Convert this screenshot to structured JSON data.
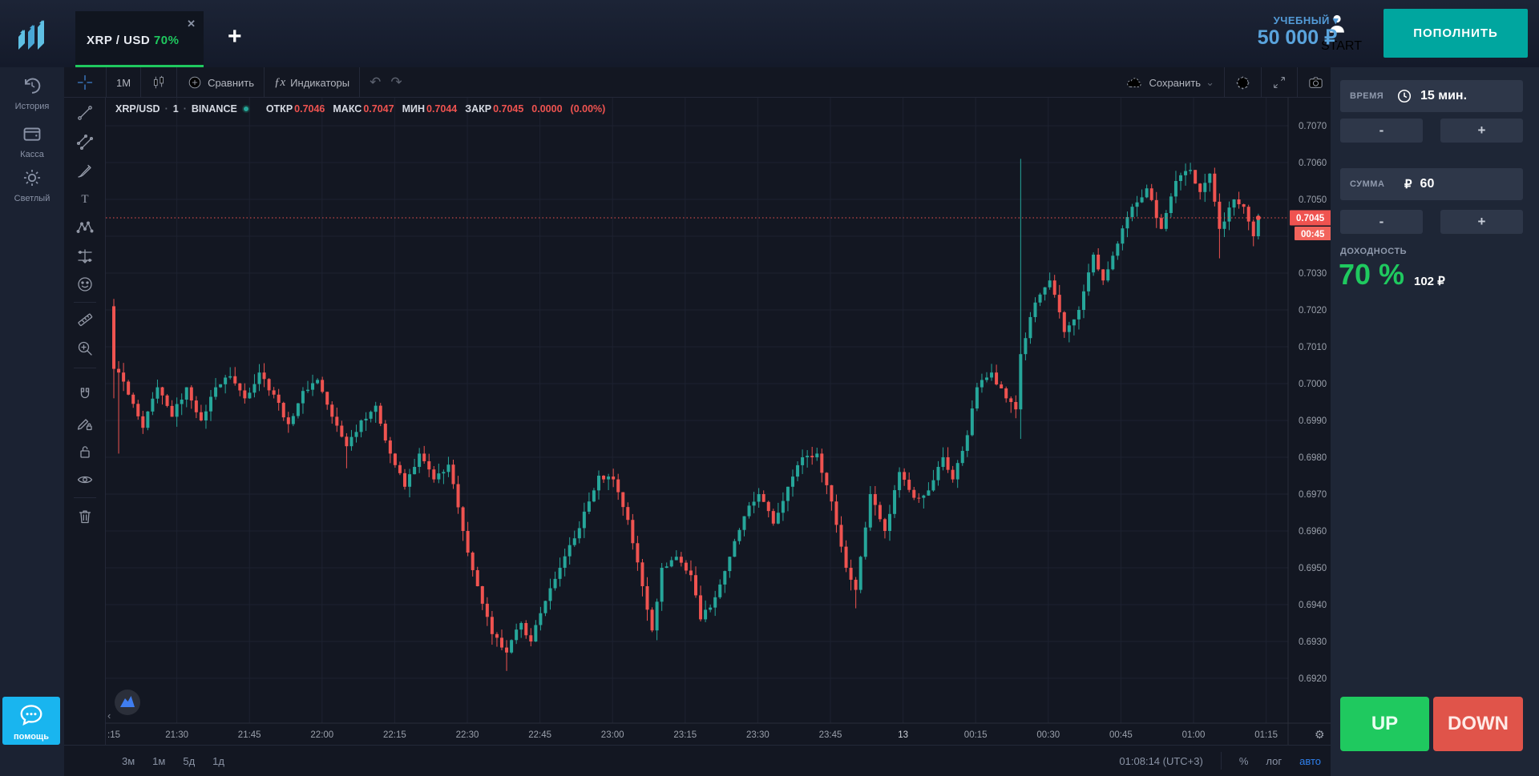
{
  "topbar": {
    "tab": {
      "symbol": "XRP / USD",
      "payout": "70%",
      "close": "✕"
    },
    "new_tab": "+",
    "account_label": "START",
    "account_type": "УЧЕБНЫЙ",
    "caret": "▾",
    "balance": "50 000 ₽",
    "deposit": "ПОПОЛНИТЬ"
  },
  "sidebar": {
    "items": [
      {
        "label": "История"
      },
      {
        "label": "Касса"
      },
      {
        "label": "Светлый"
      }
    ],
    "help": "помощь"
  },
  "toolbar": {
    "interval": "1М",
    "compare": "Сравнить",
    "fx": "ƒx",
    "indicators": "Индикаторы",
    "undo": "↶",
    "redo": "↷",
    "save": "Сохранить",
    "save_caret": "⌄"
  },
  "legend": {
    "symbol": "XRP/USD",
    "sep1": "·",
    "interval": "1",
    "sep2": "·",
    "exchange": "BINANCE",
    "open_label": "ОТКР",
    "open": "0.7046",
    "high_label": "МАКС",
    "high": "0.7047",
    "low_label": "МИН",
    "low": "0.7044",
    "close_label": "ЗАКР",
    "close": "0.7045",
    "change": "0.0000",
    "change_pct": "(0.00%)"
  },
  "price_marker": {
    "price": "0.7045",
    "countdown": "00:45"
  },
  "bottom_bar": {
    "ranges": [
      "3м",
      "1м",
      "5д",
      "1д"
    ],
    "clock": "01:08:14 (UTC+3)",
    "percent": "%",
    "log": "лог",
    "auto": "авто"
  },
  "panel": {
    "time_label": "ВРЕМЯ",
    "time_value": "15 мин.",
    "amount_label": "СУММА",
    "currency": "₽",
    "amount_value": "60",
    "minus": "-",
    "plus": "+",
    "payout_label": "ДОХОДНОСТЬ",
    "payout_percent": "70 %",
    "payout_profit": "102 ₽",
    "up": "UP",
    "down": "DOWN"
  },
  "chart_data": {
    "type": "candlestick",
    "symbol": "XRP/USD",
    "exchange": "BINANCE",
    "interval_minutes": 1,
    "start_time": "21:13",
    "end_time": "01:09",
    "x_ticks": [
      ":15",
      "21:30",
      "21:45",
      "22:00",
      "22:15",
      "22:30",
      "22:45",
      "23:00",
      "23:15",
      "23:30",
      "23:45",
      "13",
      "00:15",
      "00:30",
      "00:45",
      "01:00",
      "01:15"
    ],
    "y_ticks": [
      0.707,
      0.706,
      0.705,
      0.704,
      0.703,
      0.702,
      0.701,
      0.7,
      0.699,
      0.698,
      0.697,
      0.696,
      0.695,
      0.694,
      0.693,
      0.692
    ],
    "ylim": [
      0.69055,
      0.70835
    ],
    "current_price": 0.7045,
    "countdown": "00:45",
    "grid": true,
    "legend_position": "top-left",
    "colors": {
      "up": "#26a69a",
      "down": "#ef5350",
      "current_line": "#ef5350"
    },
    "minutes": 237,
    "anchors": [
      [
        0,
        0.7004
      ],
      [
        1,
        0.7003
      ],
      [
        3,
        0.6997
      ],
      [
        6,
        0.6988
      ],
      [
        9,
        0.6999
      ],
      [
        12,
        0.6991
      ],
      [
        15,
        0.6999
      ],
      [
        18,
        0.699
      ],
      [
        21,
        0.6999
      ],
      [
        24,
        0.7002
      ],
      [
        27,
        0.6996
      ],
      [
        30,
        0.7003
      ],
      [
        33,
        0.6997
      ],
      [
        36,
        0.6989
      ],
      [
        39,
        0.6998
      ],
      [
        42,
        0.7001
      ],
      [
        45,
        0.6991
      ],
      [
        48,
        0.6983
      ],
      [
        51,
        0.699
      ],
      [
        54,
        0.6994
      ],
      [
        57,
        0.6981
      ],
      [
        60,
        0.6972
      ],
      [
        63,
        0.6981
      ],
      [
        66,
        0.6974
      ],
      [
        69,
        0.6978
      ],
      [
        72,
        0.696
      ],
      [
        75,
        0.6945
      ],
      [
        78,
        0.6932
      ],
      [
        81,
        0.6927
      ],
      [
        84,
        0.6935
      ],
      [
        86,
        0.693
      ],
      [
        89,
        0.6941
      ],
      [
        92,
        0.695
      ],
      [
        95,
        0.6958
      ],
      [
        98,
        0.6968
      ],
      [
        100,
        0.6975
      ],
      [
        103,
        0.6974
      ],
      [
        106,
        0.6963
      ],
      [
        109,
        0.6945
      ],
      [
        111,
        0.6933
      ],
      [
        113,
        0.695
      ],
      [
        116,
        0.6953
      ],
      [
        119,
        0.6948
      ],
      [
        121,
        0.6936
      ],
      [
        124,
        0.6942
      ],
      [
        127,
        0.6953
      ],
      [
        130,
        0.6964
      ],
      [
        133,
        0.697
      ],
      [
        136,
        0.6962
      ],
      [
        139,
        0.6972
      ],
      [
        142,
        0.698
      ],
      [
        145,
        0.6981
      ],
      [
        148,
        0.6968
      ],
      [
        151,
        0.695
      ],
      [
        153,
        0.6944
      ],
      [
        156,
        0.697
      ],
      [
        159,
        0.696
      ],
      [
        162,
        0.6976
      ],
      [
        165,
        0.6969
      ],
      [
        168,
        0.6971
      ],
      [
        171,
        0.698
      ],
      [
        173,
        0.6974
      ],
      [
        176,
        0.6986
      ],
      [
        178,
        0.6999
      ],
      [
        181,
        0.7003
      ],
      [
        184,
        0.6996
      ],
      [
        186,
        0.6993
      ],
      [
        187,
        0.7008
      ],
      [
        190,
        0.7022
      ],
      [
        193,
        0.7028
      ],
      [
        196,
        0.7014
      ],
      [
        199,
        0.702
      ],
      [
        202,
        0.7035
      ],
      [
        204,
        0.7028
      ],
      [
        207,
        0.7038
      ],
      [
        210,
        0.7048
      ],
      [
        213,
        0.7053
      ],
      [
        216,
        0.7042
      ],
      [
        219,
        0.7055
      ],
      [
        222,
        0.7058
      ],
      [
        224,
        0.7052
      ],
      [
        226,
        0.7057
      ],
      [
        228,
        0.7042
      ],
      [
        231,
        0.705
      ],
      [
        233,
        0.7048
      ],
      [
        235,
        0.704
      ],
      [
        236,
        0.7045
      ]
    ],
    "specials": [
      {
        "i": 0,
        "open": 0.7021,
        "high": 0.7023,
        "close": 0.7004,
        "low": 0.6996
      },
      {
        "i": 1,
        "low": 0.6981
      },
      {
        "i": 48,
        "low": 0.6977
      },
      {
        "i": 81,
        "low": 0.6922
      },
      {
        "i": 153,
        "low": 0.6939
      },
      {
        "i": 187,
        "high": 0.7061,
        "low": 0.6985
      },
      {
        "i": 228,
        "low": 0.7034
      }
    ]
  }
}
